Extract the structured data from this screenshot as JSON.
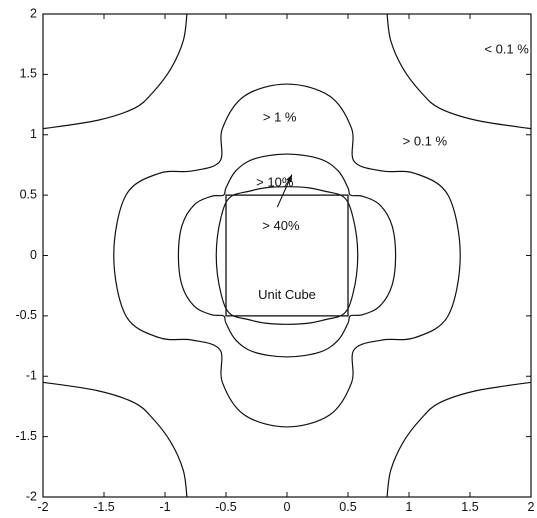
{
  "chart_data": {
    "type": "contour",
    "title": "",
    "xlabel": "",
    "ylabel": "",
    "xlim": [
      -2,
      2
    ],
    "ylim": [
      -2,
      2
    ],
    "x_ticks": [
      "-2",
      "-1.5",
      "-1",
      "-0.5",
      "0",
      "0.5",
      "1",
      "1.5",
      "2"
    ],
    "y_ticks": [
      "2",
      "1.5",
      "1",
      "0.5",
      "0",
      "-0.5",
      "-1",
      "-1.5",
      "-2"
    ],
    "grid": false,
    "levels": [
      {
        "label": "< 0.1 %",
        "label_xy": [
          1.8,
          1.7
        ]
      },
      {
        "label": "> 0.1 %",
        "label_xy": [
          1.13,
          0.94
        ]
      },
      {
        "label": "> 1 %",
        "label_xy": [
          -0.06,
          1.14
        ]
      },
      {
        "label": "> 10%",
        "label_xy": [
          -0.1,
          0.6
        ]
      },
      {
        "label": "> 40%",
        "label_xy": [
          -0.05,
          0.24
        ]
      }
    ],
    "unit_cube": {
      "label": "Unit Cube",
      "x": [
        -0.5,
        0.5
      ],
      "y": [
        -0.5,
        0.5
      ]
    },
    "curves": {
      "c01_corner": [
        [
          0.82,
          2.0
        ],
        [
          0.85,
          1.78
        ],
        [
          0.95,
          1.55
        ],
        [
          1.1,
          1.35
        ],
        [
          1.25,
          1.22
        ],
        [
          1.55,
          1.12
        ],
        [
          2.0,
          1.05
        ]
      ],
      "c1_quarter": [
        [
          0.0,
          1.42
        ],
        [
          0.35,
          1.32
        ],
        [
          0.53,
          1.05
        ],
        [
          0.55,
          0.78
        ],
        [
          0.78,
          0.7
        ],
        [
          1.05,
          0.68
        ],
        [
          1.32,
          0.5
        ],
        [
          1.42,
          0.0
        ]
      ],
      "c10_quarter": [
        [
          0.0,
          0.84
        ],
        [
          0.27,
          0.8
        ],
        [
          0.42,
          0.7
        ],
        [
          0.5,
          0.56
        ],
        [
          0.52,
          0.5
        ],
        [
          0.62,
          0.49
        ],
        [
          0.76,
          0.42
        ],
        [
          0.86,
          0.25
        ],
        [
          0.89,
          0.0
        ]
      ],
      "c40_quarter": [
        [
          0.0,
          0.57
        ],
        [
          0.18,
          0.56
        ],
        [
          0.32,
          0.53
        ],
        [
          0.44,
          0.5
        ],
        [
          0.5,
          0.44
        ],
        [
          0.54,
          0.32
        ],
        [
          0.57,
          0.16
        ],
        [
          0.58,
          0.0
        ]
      ]
    },
    "arrow": {
      "from": [
        -0.08,
        0.4
      ],
      "to": [
        0.04,
        0.67
      ]
    },
    "colors": {
      "line": "#111111",
      "background": "#ffffff"
    }
  }
}
